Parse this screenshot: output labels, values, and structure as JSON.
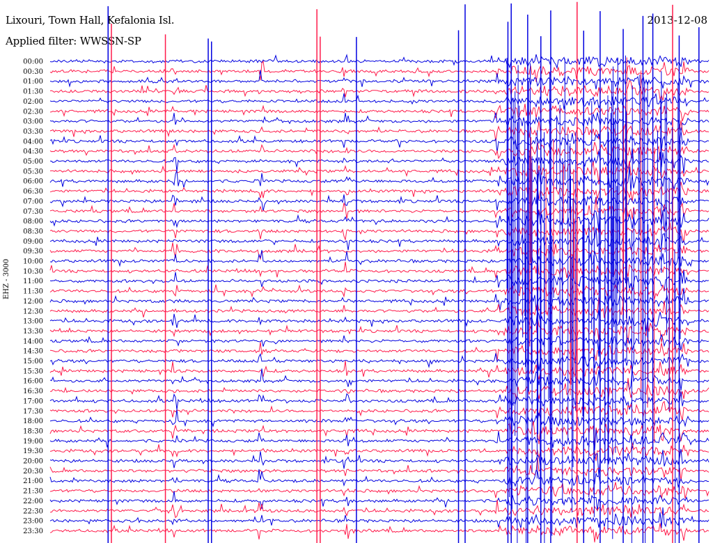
{
  "header": {
    "station": "Lixouri, Town Hall, Kefalonia Isl.",
    "filter": "Applied filter: WWSSN-SP",
    "date": "2013-12-08"
  },
  "chart_data": {
    "type": "line",
    "title": "Lixouri, Town Hall, Kefalonia Isl.",
    "subtitle": "Applied filter: WWSSN-SP",
    "ylabel": "EHZ - 3000",
    "xlabel": "",
    "row_labels": [
      "00:00",
      "00:30",
      "01:00",
      "01:30",
      "02:00",
      "02:30",
      "03:00",
      "03:30",
      "04:00",
      "04:30",
      "05:00",
      "05:30",
      "06:00",
      "06:30",
      "07:00",
      "07:30",
      "08:00",
      "08:30",
      "09:00",
      "09:30",
      "10:00",
      "10:30",
      "11:00",
      "11:30",
      "12:00",
      "12:30",
      "13:00",
      "13:30",
      "14:00",
      "14:30",
      "15:00",
      "15:30",
      "16:00",
      "16:30",
      "17:00",
      "17:30",
      "18:00",
      "18:30",
      "19:00",
      "19:30",
      "20:00",
      "20:30",
      "21:00",
      "21:30",
      "22:00",
      "22:30",
      "23:00",
      "23:30"
    ],
    "series_colors": [
      "#0000e0",
      "#ff1a4a"
    ],
    "row_minutes": 30,
    "events_fraction_of_row": [
      0.19,
      0.32,
      0.45,
      0.68,
      0.74,
      0.83,
      0.88,
      0.93,
      0.96
    ]
  }
}
